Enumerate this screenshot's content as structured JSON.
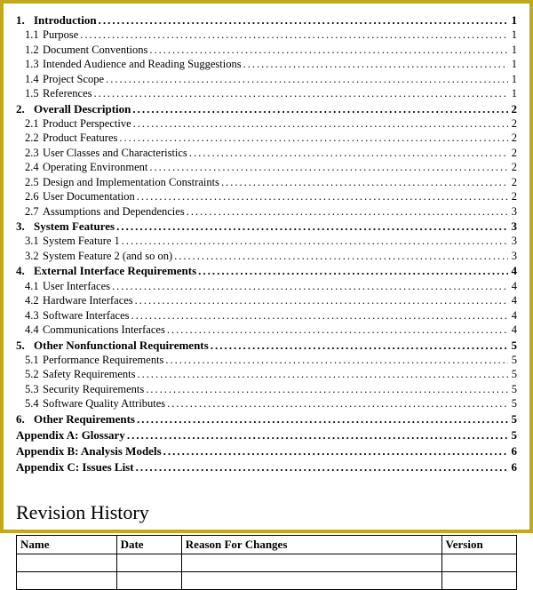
{
  "frame": {
    "border_color": "#c4a81b"
  },
  "toc": {
    "text_color": "#000000",
    "sections": [
      {
        "num": "1.",
        "title": "Introduction",
        "page": "1",
        "items": [
          {
            "num": "1.1",
            "title": "Purpose",
            "page": "1"
          },
          {
            "num": "1.2",
            "title": "Document Conventions",
            "page": "1"
          },
          {
            "num": "1.3",
            "title": "Intended Audience and Reading Suggestions",
            "page": "1"
          },
          {
            "num": "1.4",
            "title": "Project Scope",
            "page": "1"
          },
          {
            "num": "1.5",
            "title": "References",
            "page": "1"
          }
        ]
      },
      {
        "num": "2.",
        "title": "Overall Description",
        "page": "2",
        "items": [
          {
            "num": "2.1",
            "title": "Product Perspective",
            "page": "2"
          },
          {
            "num": "2.2",
            "title": "Product Features",
            "page": "2"
          },
          {
            "num": "2.3",
            "title": "User Classes and Characteristics",
            "page": "2"
          },
          {
            "num": "2.4",
            "title": "Operating Environment",
            "page": "2"
          },
          {
            "num": "2.5",
            "title": "Design and Implementation Constraints",
            "page": "2"
          },
          {
            "num": "2.6",
            "title": "User Documentation",
            "page": "2"
          },
          {
            "num": "2.7",
            "title": "Assumptions and Dependencies",
            "page": "3"
          }
        ]
      },
      {
        "num": "3.",
        "title": "System Features",
        "page": "3",
        "items": [
          {
            "num": "3.1",
            "title": "System Feature 1",
            "page": "3"
          },
          {
            "num": "3.2",
            "title": "System Feature 2 (and so on)",
            "page": "3"
          }
        ]
      },
      {
        "num": "4.",
        "title": "External Interface Requirements",
        "page": "4",
        "items": [
          {
            "num": "4.1",
            "title": "User Interfaces",
            "page": "4"
          },
          {
            "num": "4.2",
            "title": "Hardware Interfaces",
            "page": "4"
          },
          {
            "num": "4.3",
            "title": "Software Interfaces",
            "page": "4"
          },
          {
            "num": "4.4",
            "title": "Communications Interfaces",
            "page": "4"
          }
        ]
      },
      {
        "num": "5.",
        "title": "Other Nonfunctional Requirements",
        "page": "5",
        "items": [
          {
            "num": "5.1",
            "title": "Performance Requirements",
            "page": "5"
          },
          {
            "num": "5.2",
            "title": "Safety Requirements",
            "page": "5"
          },
          {
            "num": "5.3",
            "title": "Security Requirements",
            "page": "5"
          },
          {
            "num": "5.4",
            "title": "Software Quality Attributes",
            "page": "5"
          }
        ]
      },
      {
        "num": "6.",
        "title": "Other Requirements",
        "page": "5",
        "items": []
      }
    ],
    "appendices": [
      {
        "title": "Appendix A: Glossary",
        "page": "5"
      },
      {
        "title": "Appendix B: Analysis Models",
        "page": "6"
      },
      {
        "title": "Appendix C: Issues List",
        "page": "6"
      }
    ]
  },
  "revision": {
    "heading": "Revision History",
    "columns": [
      "Name",
      "Date",
      "Reason For Changes",
      "Version"
    ],
    "col_widths_pct": [
      20,
      13,
      52,
      15
    ],
    "rows": [
      [
        "",
        "",
        "",
        ""
      ],
      [
        "",
        "",
        "",
        ""
      ]
    ]
  }
}
